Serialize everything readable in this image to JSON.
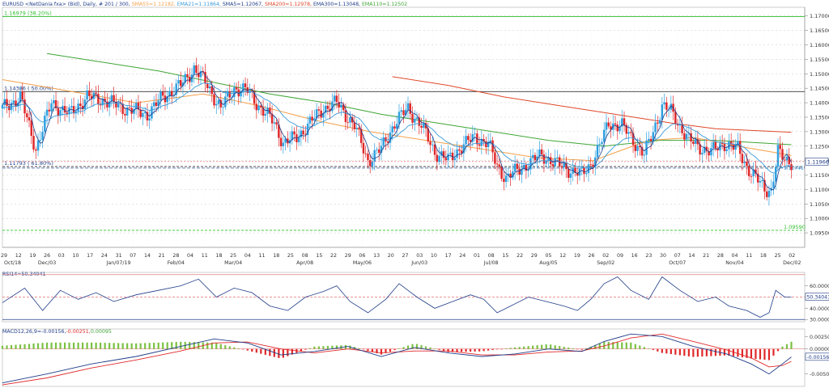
{
  "header": {
    "symbol": "EURUSD <NetDania fxa> (Bid), Daily, # 201 / 300,",
    "indicators": [
      {
        "label": "SMA55=1.12182,",
        "color": "#f5a04a"
      },
      {
        "label": "EMA21=1.11864,",
        "color": "#3a9ad9"
      },
      {
        "label": "SMA5=1.12067,",
        "color": "#1f3c88"
      },
      {
        "label": "SMA200=1.12978,",
        "color": "#e0482a"
      },
      {
        "label": "EMA300=1.13048,",
        "color": "#1f3c88"
      },
      {
        "label": "EMA110=1.12502",
        "color": "#3fa535"
      }
    ]
  },
  "main_chart": {
    "price_axis": [
      {
        "value": 1.17,
        "label": "1.17000"
      },
      {
        "value": 1.165,
        "label": "1.16500"
      },
      {
        "value": 1.16,
        "label": "1.16000"
      },
      {
        "value": 1.155,
        "label": "1.15500"
      },
      {
        "value": 1.15,
        "label": "1.15000"
      },
      {
        "value": 1.145,
        "label": "1.14500"
      },
      {
        "value": 1.14,
        "label": "1.14000"
      },
      {
        "value": 1.135,
        "label": "1.13500"
      },
      {
        "value": 1.13,
        "label": "1.13000"
      },
      {
        "value": 1.125,
        "label": "1.12500"
      },
      {
        "value": 1.12,
        "label": "1.12000"
      },
      {
        "value": 1.115,
        "label": "1.11500"
      },
      {
        "value": 1.11,
        "label": "1.11000"
      },
      {
        "value": 1.105,
        "label": "1.10500"
      },
      {
        "value": 1.1,
        "label": "1.10000"
      },
      {
        "value": 1.095,
        "label": "1.09500"
      }
    ],
    "ylim": [
      1.09,
      1.173
    ],
    "levels": [
      {
        "value": 1.16979,
        "label": "1.16979 (38.20%)",
        "color": "#2fbf2f",
        "style": "solid"
      },
      {
        "value": 1.14386,
        "label": "1.14386 ( 50.00%)",
        "color": "#333333",
        "style": "solid"
      },
      {
        "value": 1.11793,
        "label": "1.11793 ( 61.80%)",
        "color": "#333333",
        "style": "dashed"
      },
      {
        "value": 1.0959,
        "label": "1.09590",
        "color": "#2fbf2f",
        "style": "dashed"
      }
    ],
    "current_price": {
      "value": 1.11966,
      "label": "1.11966"
    },
    "current_ma": {
      "value": 1.11741,
      "label": "1.11741"
    },
    "x_ticks": [
      "29",
      "12",
      "19",
      "26",
      "03",
      "10",
      "17",
      "24",
      "31",
      "07",
      "14",
      "21",
      "28",
      "04",
      "11",
      "18",
      "25",
      "04",
      "11",
      "18",
      "25",
      "08",
      "15",
      "22",
      "29",
      "06",
      "13",
      "20",
      "27",
      "03",
      "10",
      "17",
      "24",
      "01",
      "08",
      "15",
      "22",
      "29",
      "05",
      "12",
      "19",
      "26",
      "02",
      "09",
      "16",
      "23",
      "30",
      "07",
      "14",
      "21",
      "28",
      "04",
      "11",
      "18",
      "25",
      "02"
    ],
    "x_month_labels": [
      "Oct/18",
      "Dec/03",
      "Jan/07/19",
      "Feb/04",
      "Mar/04",
      "Apr/08",
      "May/06",
      "Jun/03",
      "Jul/08",
      "Aug/05",
      "Sep/02",
      "Oct/07",
      "Nov/04",
      "Dec/02"
    ]
  },
  "rsi_panel": {
    "label": "RSI14=50.34041",
    "axis": [
      {
        "value": 60,
        "label": "60.00000"
      },
      {
        "value": 40,
        "label": "40.00000"
      },
      {
        "value": 30,
        "label": "30.00000"
      }
    ],
    "current_label": "50.34041",
    "overbought": 70,
    "oversold": 30,
    "ylim": [
      28,
      72
    ]
  },
  "macd_panel": {
    "label_parts": [
      {
        "text": "MACD12,26,9=-0.00156,",
        "color": "#1f3c88"
      },
      {
        "text": "-0.00251,",
        "color": "#e0282a"
      },
      {
        "text": "0.00095",
        "color": "#3fa535"
      }
    ],
    "axis": [
      {
        "value": 0.0025,
        "label": "0.00250"
      },
      {
        "value": 0,
        "label": "0.00000"
      },
      {
        "value": -0.005,
        "label": "-0.00500"
      }
    ],
    "current_label": "-0.00156",
    "ylim": [
      -0.0075,
      0.004
    ]
  },
  "colors": {
    "bull": "#2fa0e0",
    "bear": "#e0282a",
    "grid": "#c8c8c8",
    "panel_border": "#e08080"
  },
  "chart_data": {
    "type": "candlestick",
    "title": "EURUSD <NetDania fxa> (Bid), Daily",
    "price_path": [
      [
        0,
        1.138
      ],
      [
        8,
        1.142
      ],
      [
        15,
        1.124
      ],
      [
        22,
        1.14
      ],
      [
        30,
        1.136
      ],
      [
        38,
        1.142
      ],
      [
        45,
        1.141
      ],
      [
        55,
        1.138
      ],
      [
        65,
        1.136
      ],
      [
        72,
        1.142
      ],
      [
        80,
        1.146
      ],
      [
        86,
        1.152
      ],
      [
        92,
        1.146
      ],
      [
        98,
        1.138
      ],
      [
        104,
        1.145
      ],
      [
        110,
        1.144
      ],
      [
        116,
        1.138
      ],
      [
        122,
        1.133
      ],
      [
        126,
        1.126
      ],
      [
        132,
        1.128
      ],
      [
        138,
        1.133
      ],
      [
        144,
        1.138
      ],
      [
        150,
        1.14
      ],
      [
        158,
        1.132
      ],
      [
        164,
        1.12
      ],
      [
        170,
        1.124
      ],
      [
        176,
        1.133
      ],
      [
        182,
        1.138
      ],
      [
        188,
        1.132
      ],
      [
        194,
        1.123
      ],
      [
        200,
        1.12
      ],
      [
        206,
        1.125
      ],
      [
        212,
        1.128
      ],
      [
        218,
        1.126
      ],
      [
        222,
        1.118
      ],
      [
        226,
        1.114
      ],
      [
        230,
        1.116
      ],
      [
        236,
        1.119
      ],
      [
        242,
        1.122
      ],
      [
        248,
        1.119
      ],
      [
        254,
        1.117
      ],
      [
        260,
        1.115
      ],
      [
        264,
        1.119
      ],
      [
        268,
        1.125
      ],
      [
        272,
        1.133
      ],
      [
        278,
        1.132
      ],
      [
        284,
        1.126
      ],
      [
        288,
        1.122
      ],
      [
        292,
        1.13
      ],
      [
        296,
        1.139
      ],
      [
        300,
        1.137
      ],
      [
        304,
        1.132
      ],
      [
        308,
        1.127
      ],
      [
        312,
        1.125
      ],
      [
        318,
        1.123
      ],
      [
        324,
        1.126
      ],
      [
        330,
        1.124
      ],
      [
        334,
        1.118
      ],
      [
        338,
        1.114
      ],
      [
        342,
        1.11
      ],
      [
        345,
        1.11
      ],
      [
        348,
        1.123
      ],
      [
        351,
        1.12
      ],
      [
        354,
        1.1197
      ]
    ],
    "sma200_path": [
      [
        175,
        1.149
      ],
      [
        200,
        1.146
      ],
      [
        225,
        1.142
      ],
      [
        250,
        1.139
      ],
      [
        275,
        1.136
      ],
      [
        300,
        1.133
      ],
      [
        320,
        1.131
      ],
      [
        354,
        1.1298
      ]
    ],
    "ema110_path": [
      [
        20,
        1.157
      ],
      [
        45,
        1.154
      ],
      [
        70,
        1.151
      ],
      [
        95,
        1.147
      ],
      [
        120,
        1.143
      ],
      [
        145,
        1.14
      ],
      [
        170,
        1.136
      ],
      [
        195,
        1.133
      ],
      [
        220,
        1.13
      ],
      [
        245,
        1.127
      ],
      [
        270,
        1.125
      ],
      [
        295,
        1.127
      ],
      [
        320,
        1.127
      ],
      [
        354,
        1.1255
      ]
    ],
    "sma55_path": [
      [
        0,
        1.148
      ],
      [
        30,
        1.144
      ],
      [
        60,
        1.14
      ],
      [
        90,
        1.143
      ],
      [
        115,
        1.139
      ],
      [
        140,
        1.134
      ],
      [
        165,
        1.13
      ],
      [
        190,
        1.127
      ],
      [
        215,
        1.124
      ],
      [
        240,
        1.121
      ],
      [
        265,
        1.12
      ],
      [
        290,
        1.127
      ],
      [
        310,
        1.128
      ],
      [
        330,
        1.125
      ],
      [
        354,
        1.1218
      ]
    ],
    "rsi_path": [
      [
        0,
        45
      ],
      [
        10,
        58
      ],
      [
        18,
        38
      ],
      [
        26,
        56
      ],
      [
        34,
        48
      ],
      [
        42,
        54
      ],
      [
        50,
        46
      ],
      [
        60,
        52
      ],
      [
        70,
        56
      ],
      [
        80,
        60
      ],
      [
        88,
        66
      ],
      [
        96,
        50
      ],
      [
        104,
        58
      ],
      [
        112,
        54
      ],
      [
        120,
        42
      ],
      [
        128,
        38
      ],
      [
        136,
        50
      ],
      [
        144,
        55
      ],
      [
        150,
        60
      ],
      [
        156,
        46
      ],
      [
        164,
        36
      ],
      [
        172,
        48
      ],
      [
        178,
        62
      ],
      [
        186,
        50
      ],
      [
        194,
        40
      ],
      [
        202,
        46
      ],
      [
        210,
        52
      ],
      [
        216,
        48
      ],
      [
        222,
        36
      ],
      [
        228,
        42
      ],
      [
        236,
        50
      ],
      [
        244,
        46
      ],
      [
        252,
        42
      ],
      [
        258,
        38
      ],
      [
        264,
        48
      ],
      [
        270,
        62
      ],
      [
        276,
        68
      ],
      [
        282,
        56
      ],
      [
        290,
        48
      ],
      [
        296,
        68
      ],
      [
        304,
        56
      ],
      [
        312,
        46
      ],
      [
        320,
        50
      ],
      [
        326,
        42
      ],
      [
        334,
        38
      ],
      [
        340,
        32
      ],
      [
        344,
        36
      ],
      [
        347,
        56
      ],
      [
        351,
        50
      ],
      [
        354,
        50
      ]
    ],
    "macd_path": [
      [
        0,
        -0.0068
      ],
      [
        20,
        -0.005
      ],
      [
        40,
        -0.003
      ],
      [
        60,
        -0.0015
      ],
      [
        80,
        0.0005
      ],
      [
        95,
        0.002
      ],
      [
        110,
        0.0012
      ],
      [
        125,
        -0.0012
      ],
      [
        140,
        -0.0005
      ],
      [
        155,
        0.0005
      ],
      [
        170,
        -0.0015
      ],
      [
        185,
        0.0003
      ],
      [
        200,
        -0.0008
      ],
      [
        215,
        -0.0015
      ],
      [
        230,
        -0.001
      ],
      [
        245,
        0.0
      ],
      [
        260,
        -0.0005
      ],
      [
        270,
        0.0015
      ],
      [
        282,
        0.003
      ],
      [
        296,
        0.0025
      ],
      [
        310,
        0.0005
      ],
      [
        325,
        -0.001
      ],
      [
        336,
        -0.003
      ],
      [
        344,
        -0.005
      ],
      [
        350,
        -0.003
      ],
      [
        354,
        -0.0016
      ]
    ],
    "signal_path": [
      [
        0,
        -0.0072
      ],
      [
        20,
        -0.0058
      ],
      [
        40,
        -0.0038
      ],
      [
        60,
        -0.0022
      ],
      [
        80,
        -0.0004
      ],
      [
        95,
        0.0012
      ],
      [
        110,
        0.0014
      ],
      [
        125,
        0.0
      ],
      [
        140,
        -0.0008
      ],
      [
        155,
        0.0
      ],
      [
        170,
        -0.0008
      ],
      [
        185,
        -0.0004
      ],
      [
        200,
        -0.0004
      ],
      [
        215,
        -0.0012
      ],
      [
        230,
        -0.0012
      ],
      [
        245,
        -0.0006
      ],
      [
        260,
        -0.0004
      ],
      [
        270,
        0.0006
      ],
      [
        282,
        0.0022
      ],
      [
        296,
        0.003
      ],
      [
        310,
        0.0015
      ],
      [
        325,
        -0.0002
      ],
      [
        336,
        -0.0018
      ],
      [
        344,
        -0.0036
      ],
      [
        350,
        -0.0033
      ],
      [
        354,
        -0.0025
      ]
    ]
  }
}
